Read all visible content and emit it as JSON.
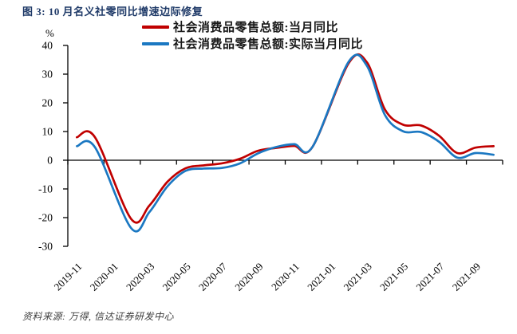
{
  "header": {
    "title": "图 3: 10 月名义社零同比增速边际修复"
  },
  "axis": {
    "unit_label": "%"
  },
  "footer": {
    "source": "资料来源: 万得, 信达证券研发中心"
  },
  "chart_data": {
    "type": "line",
    "title": "图 3: 10 月名义社零同比增速边际修复",
    "ylabel": "%",
    "ylim": [
      -30,
      40
    ],
    "ytick_step": 10,
    "grid": false,
    "smooth": true,
    "legend_position": "top-center",
    "x": [
      "2019-11",
      "2019-12",
      "2020-01",
      "2020-02",
      "2020-03",
      "2020-04",
      "2020-05",
      "2020-06",
      "2020-07",
      "2020-08",
      "2020-09",
      "2020-10",
      "2020-11",
      "2020-12",
      "2021-01",
      "2021-02",
      "2021-03",
      "2021-04",
      "2021-05",
      "2021-06",
      "2021-07",
      "2021-08",
      "2021-09",
      "2021-10"
    ],
    "x_tick_interval": 2,
    "series": [
      {
        "name": "社会消费品零售总额:当月同比",
        "color": "#C00000",
        "values": [
          8.0,
          8.0,
          null,
          -20.5,
          -15.8,
          -7.5,
          -2.8,
          -1.8,
          -1.1,
          0.5,
          3.3,
          4.3,
          5.0,
          4.6,
          null,
          33.8,
          34.2,
          17.7,
          12.4,
          12.1,
          8.5,
          2.5,
          4.4,
          4.9
        ]
      },
      {
        "name": "社会消费品零售总额:实际当月同比",
        "color": "#1B78C2",
        "values": [
          4.9,
          4.5,
          null,
          -23.7,
          -18.1,
          -9.1,
          -3.7,
          -2.9,
          -2.7,
          -1.1,
          2.4,
          4.6,
          5.6,
          4.6,
          null,
          34.3,
          33.0,
          15.8,
          10.1,
          9.8,
          6.4,
          0.9,
          2.5,
          1.9
        ]
      }
    ]
  }
}
